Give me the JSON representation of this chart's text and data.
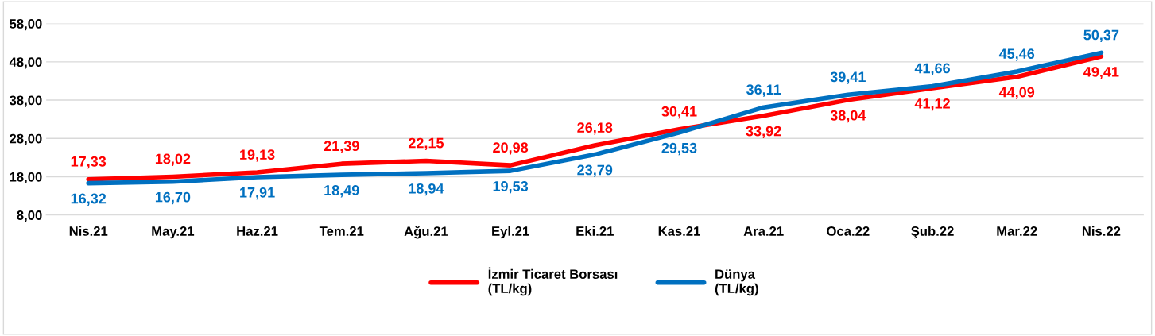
{
  "chart_data": {
    "type": "line",
    "categories": [
      "Nis.21",
      "May.21",
      "Haz.21",
      "Tem.21",
      "Ağu.21",
      "Eyl.21",
      "Eki.21",
      "Kas.21",
      "Ara.21",
      "Oca.22",
      "Şub.22",
      "Mar.22",
      "Nis.22"
    ],
    "series": [
      {
        "name": "İzmir Ticaret Borsası\n(TL/kg)",
        "color": "#ff0000",
        "values": [
          17.33,
          18.02,
          19.13,
          21.39,
          22.15,
          20.98,
          26.18,
          30.41,
          33.92,
          38.04,
          41.12,
          44.09,
          49.41
        ],
        "value_labels": [
          "17,33",
          "18,02",
          "19,13",
          "21,39",
          "22,15",
          "20,98",
          "26,18",
          "30,41",
          "33,92",
          "38,04",
          "41,12",
          "44,09",
          "49,41"
        ]
      },
      {
        "name": "Dünya\n(TL/kg)",
        "color": "#0070c0",
        "values": [
          16.32,
          16.7,
          17.91,
          18.49,
          18.94,
          19.53,
          23.79,
          29.53,
          36.11,
          39.41,
          41.66,
          45.46,
          50.37
        ],
        "value_labels": [
          "16,32",
          "16,70",
          "17,91",
          "18,49",
          "18,94",
          "19,53",
          "23,79",
          "29,53",
          "36,11",
          "39,41",
          "41,66",
          "45,46",
          "50,37"
        ]
      }
    ],
    "ylim": [
      8,
      58
    ],
    "yticks": [
      {
        "value": 8,
        "label": "8,00"
      },
      {
        "value": 18,
        "label": "18,00"
      },
      {
        "value": 28,
        "label": "28,00"
      },
      {
        "value": 38,
        "label": "38,00"
      },
      {
        "value": 48,
        "label": "48,00"
      },
      {
        "value": 58,
        "label": "58,00"
      }
    ],
    "grid": "y",
    "legend": "bottom",
    "marker": "none",
    "line_style": "solid"
  }
}
